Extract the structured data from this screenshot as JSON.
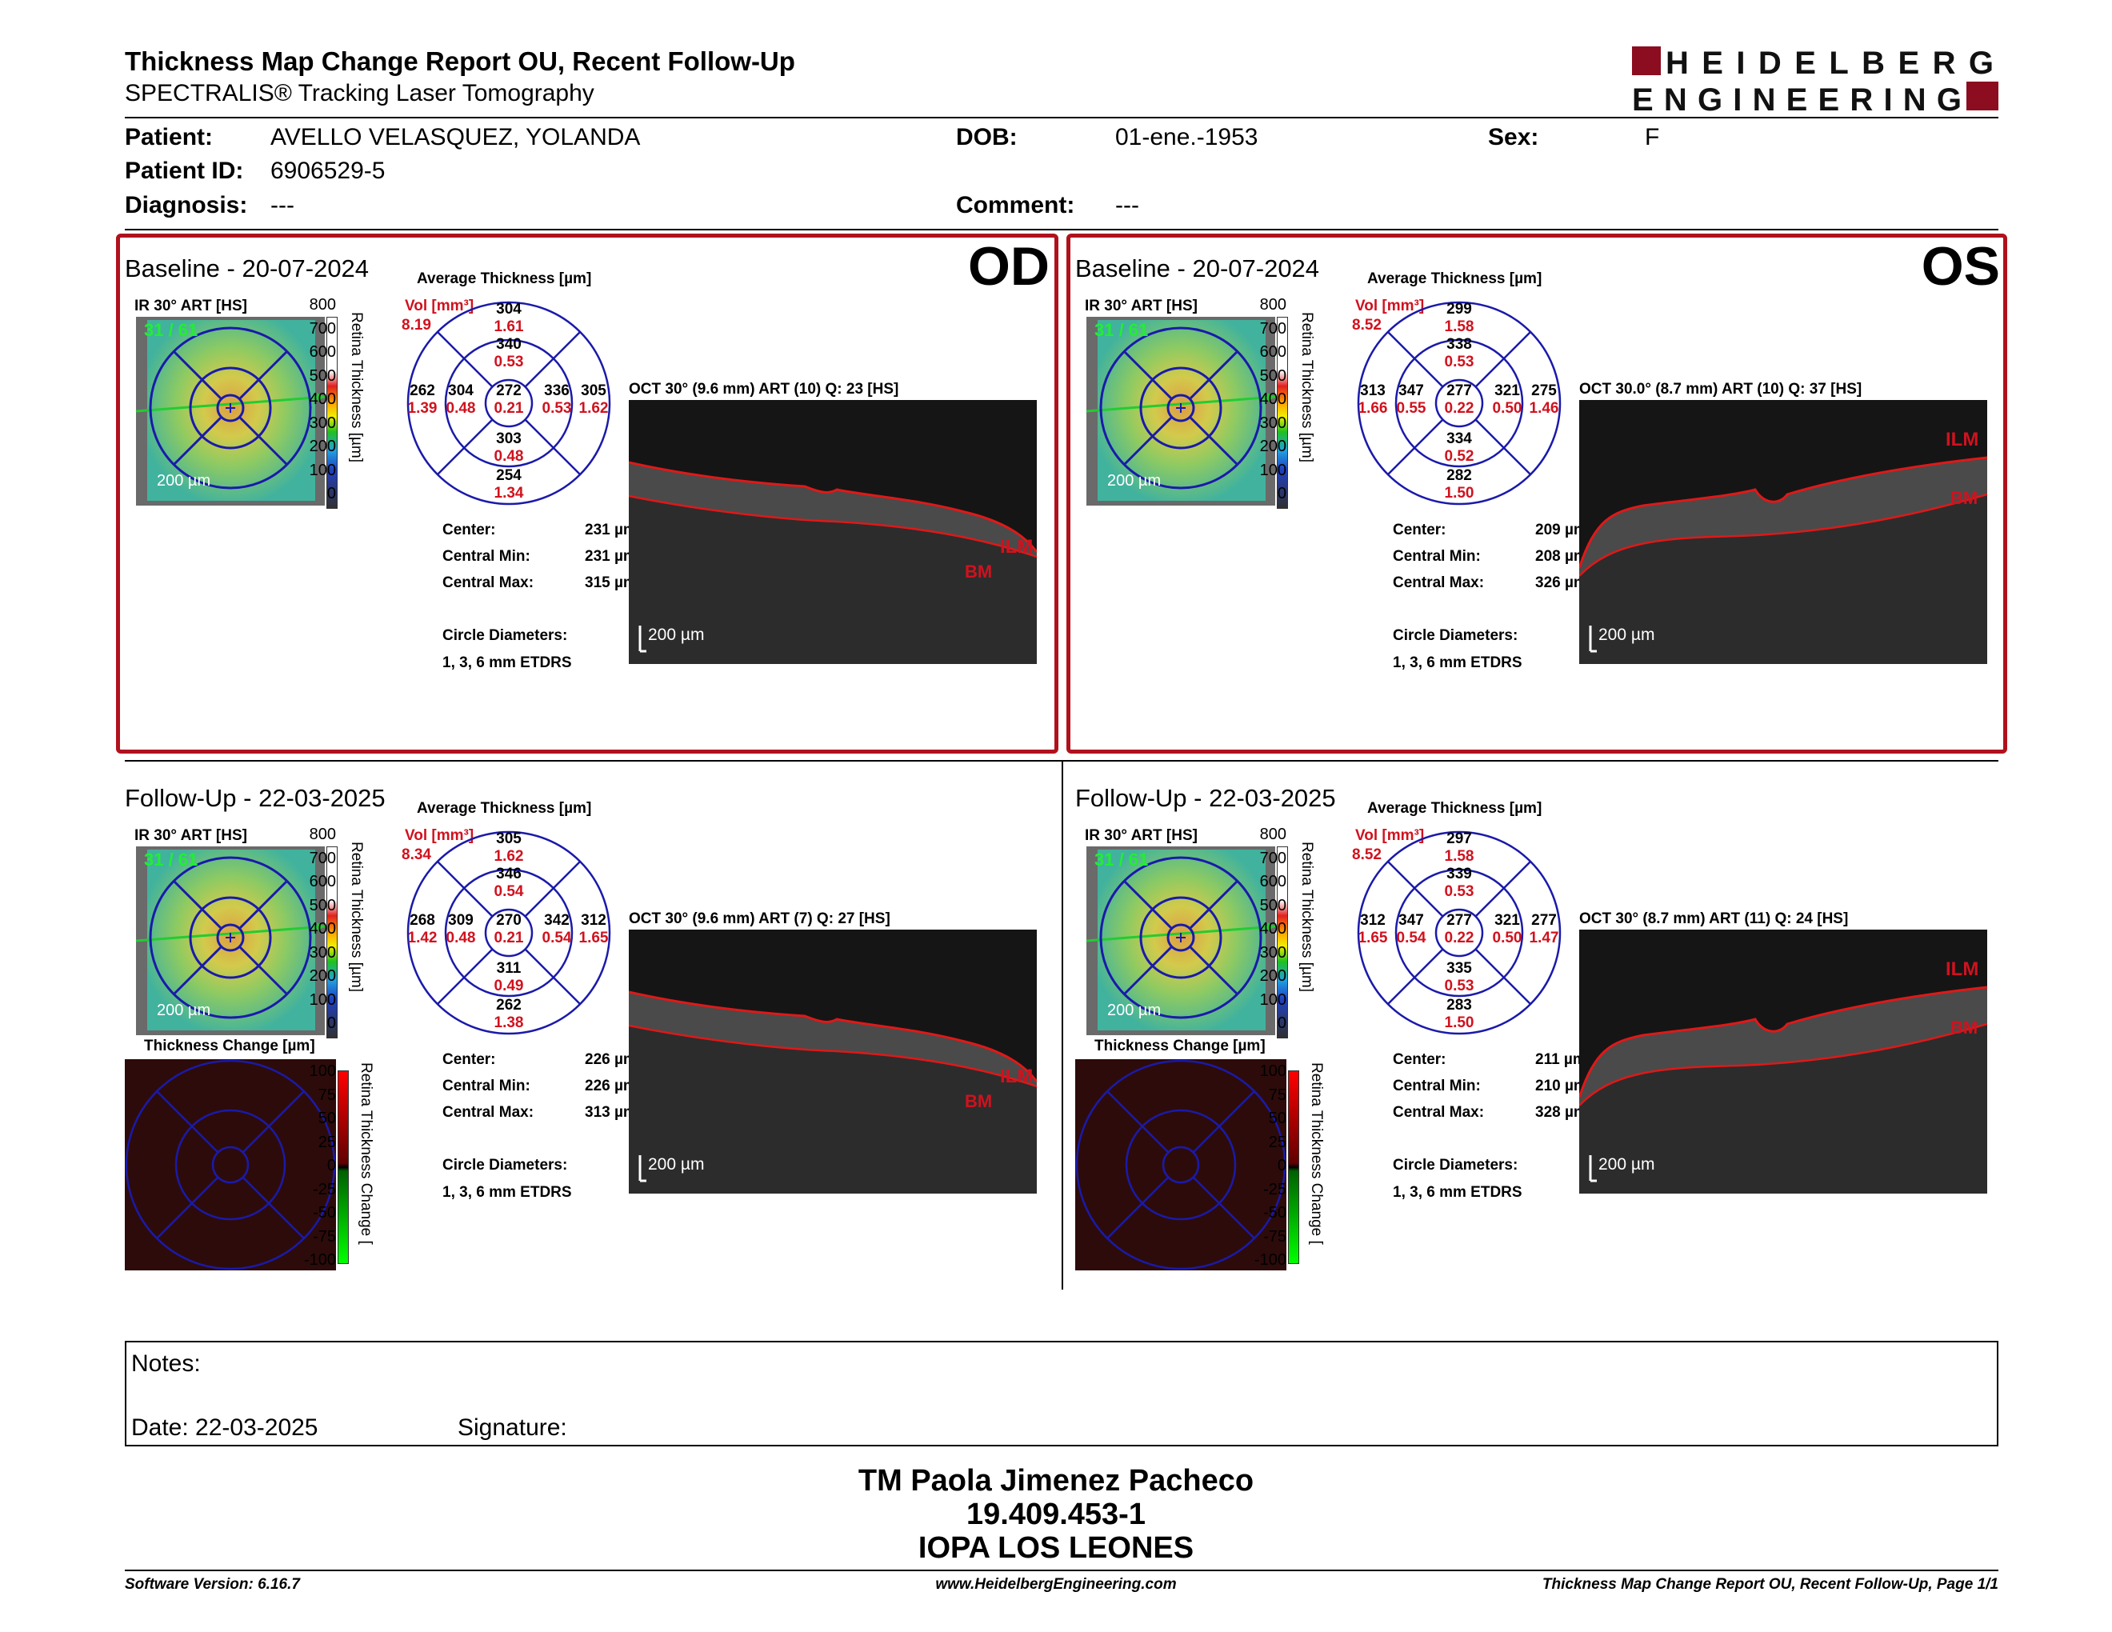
{
  "header": {
    "title": "Thickness Map Change Report OU, Recent Follow-Up",
    "subtitle": "SPECTRALIS® Tracking Laser Tomography",
    "logo_line1": "HEIDELBERG",
    "logo_line2": "ENGINEERING"
  },
  "patient": {
    "patient_label": "Patient:",
    "patient_value": "AVELLO VELASQUEZ, YOLANDA",
    "dob_label": "DOB:",
    "dob_value": "01-ene.-1953",
    "sex_label": "Sex:",
    "sex_value": "F",
    "id_label": "Patient ID:",
    "id_value": "6906529-5",
    "diagnosis_label": "Diagnosis:",
    "diagnosis_value": "---",
    "comment_label": "Comment:",
    "comment_value": "---"
  },
  "colors": {
    "accent_red": "#b0121d",
    "grid_blue": "#1a1aaa",
    "value_red": "#d0121e"
  },
  "common": {
    "ir_label": "IR 30° ART [HS]",
    "avg_thickness_label": "Average Thickness [µm]",
    "vol_label": "Vol [mm³]",
    "scale_200": "200 µm",
    "thickness_axis_label": "Retina Thickness [µm]",
    "thickness_change_title": "Thickness Change [µm]",
    "change_axis_label": "Retina Thickness Change [",
    "center_label": "Center:",
    "central_min_label": "Central Min:",
    "central_max_label": "Central Max:",
    "circle_diam_label": "Circle Diameters:",
    "circle_diam_value": "1, 3, 6 mm ETDRS",
    "ilm": "ILM",
    "bm": "BM",
    "ir_overlay_text": "31 / 61",
    "scale_ticks": [
      "800",
      "700",
      "600",
      "500",
      "400",
      "300",
      "200",
      "100",
      "0"
    ],
    "change_ticks": [
      "100",
      "75",
      "50",
      "25",
      "0",
      "-25",
      "-50",
      "-75",
      "-100"
    ]
  },
  "panels": [
    {
      "id": "od_baseline",
      "section": "Baseline - 20-07-2024",
      "eye": "OD",
      "vol": "8.19",
      "sectors": {
        "outer_top": {
          "t": "304",
          "v": "1.61"
        },
        "inner_top": {
          "t": "340",
          "v": "0.53"
        },
        "outer_left": {
          "t": "262",
          "v": "1.39"
        },
        "inner_left": {
          "t": "304",
          "v": "0.48"
        },
        "center": {
          "t": "272",
          "v": "0.21"
        },
        "inner_right": {
          "t": "336",
          "v": "0.53"
        },
        "outer_right": {
          "t": "305",
          "v": "1.62"
        },
        "inner_bottom": {
          "t": "303",
          "v": "0.48"
        },
        "outer_bottom": {
          "t": "254",
          "v": "1.34"
        }
      },
      "oct_label": "OCT 30° (9.6 mm) ART (10) Q: 23 [HS]",
      "center": "231 µm",
      "central_min": "231 µm",
      "central_max": "315 µm"
    },
    {
      "id": "os_baseline",
      "section": "Baseline - 20-07-2024",
      "eye": "OS",
      "vol": "8.52",
      "sectors": {
        "outer_top": {
          "t": "299",
          "v": "1.58"
        },
        "inner_top": {
          "t": "338",
          "v": "0.53"
        },
        "outer_left": {
          "t": "313",
          "v": "1.66"
        },
        "inner_left": {
          "t": "347",
          "v": "0.55"
        },
        "center": {
          "t": "277",
          "v": "0.22"
        },
        "inner_right": {
          "t": "321",
          "v": "0.50"
        },
        "outer_right": {
          "t": "275",
          "v": "1.46"
        },
        "inner_bottom": {
          "t": "334",
          "v": "0.52"
        },
        "outer_bottom": {
          "t": "282",
          "v": "1.50"
        }
      },
      "oct_label": "OCT 30.0° (8.7 mm) ART (10) Q: 37 [HS]",
      "center": "209 µm",
      "central_min": "208 µm",
      "central_max": "326 µm"
    },
    {
      "id": "od_followup",
      "section": "Follow-Up - 22-03-2025",
      "eye": "",
      "vol": "8.34",
      "sectors": {
        "outer_top": {
          "t": "305",
          "v": "1.62"
        },
        "inner_top": {
          "t": "346",
          "v": "0.54"
        },
        "outer_left": {
          "t": "268",
          "v": "1.42"
        },
        "inner_left": {
          "t": "309",
          "v": "0.48"
        },
        "center": {
          "t": "270",
          "v": "0.21"
        },
        "inner_right": {
          "t": "342",
          "v": "0.54"
        },
        "outer_right": {
          "t": "312",
          "v": "1.65"
        },
        "inner_bottom": {
          "t": "311",
          "v": "0.49"
        },
        "outer_bottom": {
          "t": "262",
          "v": "1.38"
        }
      },
      "oct_label": "OCT 30° (9.6 mm) ART (7) Q: 27 [HS]",
      "center": "226 µm",
      "central_min": "226 µm",
      "central_max": "313 µm"
    },
    {
      "id": "os_followup",
      "section": "Follow-Up - 22-03-2025",
      "eye": "",
      "vol": "8.52",
      "sectors": {
        "outer_top": {
          "t": "297",
          "v": "1.58"
        },
        "inner_top": {
          "t": "339",
          "v": "0.53"
        },
        "outer_left": {
          "t": "312",
          "v": "1.65"
        },
        "inner_left": {
          "t": "347",
          "v": "0.54"
        },
        "center": {
          "t": "277",
          "v": "0.22"
        },
        "inner_right": {
          "t": "321",
          "v": "0.50"
        },
        "outer_right": {
          "t": "277",
          "v": "1.47"
        },
        "inner_bottom": {
          "t": "335",
          "v": "0.53"
        },
        "outer_bottom": {
          "t": "283",
          "v": "1.50"
        }
      },
      "oct_label": "OCT 30° (8.7 mm) ART (11) Q: 24 [HS]",
      "center": "211 µm",
      "central_min": "210 µm",
      "central_max": "328 µm"
    }
  ],
  "notes": {
    "notes_label": "Notes:",
    "date_label": "Date: 22-03-2025",
    "signature_label": "Signature:"
  },
  "signature": {
    "name": "TM Paola Jimenez Pacheco",
    "rut": "19.409.453-1",
    "clinic": "IOPA LOS LEONES"
  },
  "footer": {
    "software": "Software Version: 6.16.7",
    "website": "www.HeidelbergEngineering.com",
    "page": "Thickness Map Change Report OU, Recent Follow-Up, Page 1/1"
  }
}
